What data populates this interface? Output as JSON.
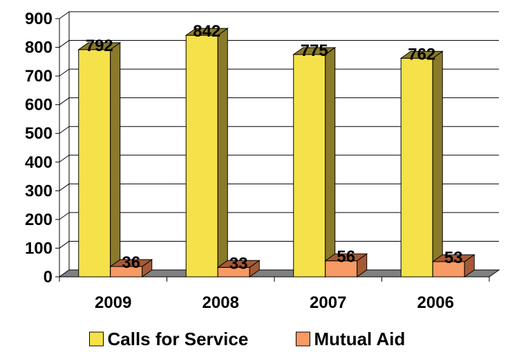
{
  "chart_data": {
    "type": "bar",
    "categories": [
      "2009",
      "2008",
      "2007",
      "2006"
    ],
    "series": [
      {
        "name": "Calls for Service",
        "values": [
          792,
          842,
          775,
          762
        ],
        "color": "#f5e14a",
        "side_color": "#8a7a2a"
      },
      {
        "name": "Mutual Aid",
        "values": [
          36,
          33,
          56,
          53
        ],
        "color": "#f79a63",
        "side_color": "#a55a36"
      }
    ],
    "y_ticks": [
      "0",
      "100",
      "200",
      "300",
      "400",
      "500",
      "600",
      "700",
      "800",
      "900"
    ],
    "ylim": [
      0,
      900
    ],
    "grid": true,
    "legend_position": "bottom",
    "three_d": true,
    "floor_color": "#808080"
  }
}
